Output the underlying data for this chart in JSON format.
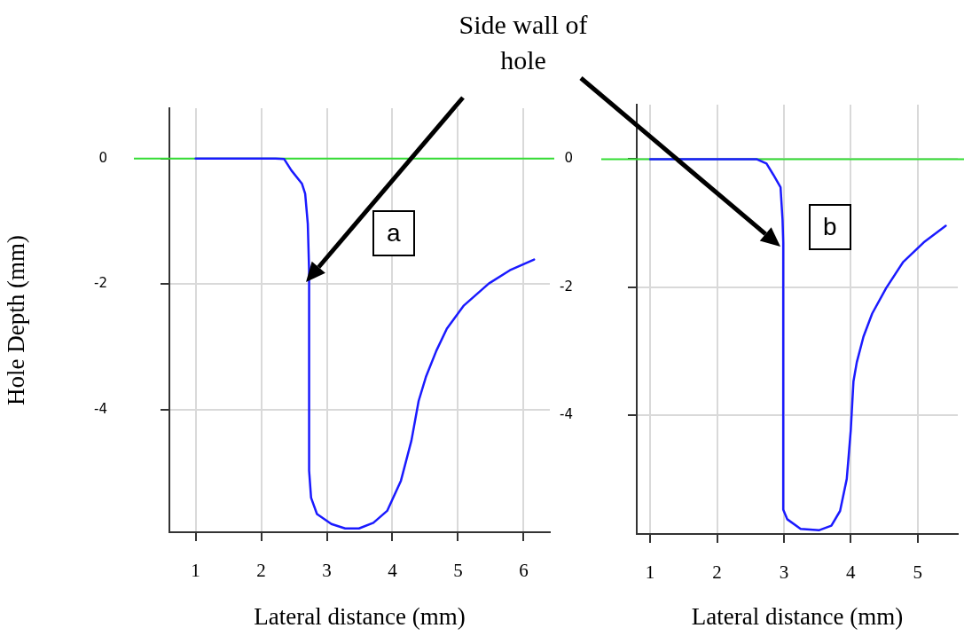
{
  "chart_data": [
    {
      "type": "line",
      "ylabel": "Hole Depth (mm)",
      "xlabel": "Lateral distance (mm)",
      "annotations": [
        "Side wall of hole",
        "a"
      ],
      "xlim": [
        0.6,
        6.4
      ],
      "xticks": [
        1,
        2,
        3,
        4,
        5,
        6
      ],
      "ylim": [
        -5.95,
        0.8
      ],
      "yticks": [
        0,
        -2,
        -4
      ],
      "grid": true,
      "legend": false,
      "marker": "none",
      "line_style": "solid",
      "ref_lines": [
        {
          "axis": "y",
          "value": 0,
          "color": "#33dd33"
        }
      ],
      "series": [
        {
          "color": "#1a1aff",
          "x": [
            1,
            2.22,
            2.35,
            2.46,
            2.62,
            2.67,
            2.71,
            2.73,
            2.73,
            2.76,
            2.85,
            3.07,
            3.28,
            3.49,
            3.71,
            3.92,
            4.13,
            4.29,
            4.4,
            4.51,
            4.67,
            4.83,
            5.09,
            5.47,
            5.79,
            6.16
          ],
          "values": [
            0,
            0,
            -0.01,
            -0.19,
            -0.4,
            -0.56,
            -1.04,
            -1.78,
            -4.97,
            -5.4,
            -5.66,
            -5.82,
            -5.89,
            -5.89,
            -5.8,
            -5.61,
            -5.13,
            -4.49,
            -3.86,
            -3.48,
            -3.06,
            -2.71,
            -2.34,
            -1.99,
            -1.78,
            -1.61
          ]
        }
      ]
    },
    {
      "type": "line",
      "xlabel": "Lateral distance (mm)",
      "annotations": [
        "b"
      ],
      "xlim": [
        0.8,
        5.6
      ],
      "xticks": [
        1,
        2,
        3,
        4,
        5
      ],
      "ylim": [
        -5.85,
        0.85
      ],
      "yticks": [
        0,
        -2,
        -4
      ],
      "grid": true,
      "legend": false,
      "marker": "none",
      "line_style": "solid",
      "ref_lines": [
        {
          "axis": "y",
          "value": 0,
          "color": "#33dd33"
        }
      ],
      "series": [
        {
          "color": "#1a1aff",
          "x": [
            1,
            2.59,
            2.74,
            2.84,
            2.95,
            2.98,
            2.99,
            2.99,
            3.05,
            3.25,
            3.53,
            3.71,
            3.84,
            3.94,
            4.0,
            4.04,
            4.09,
            4.19,
            4.32,
            4.53,
            4.78,
            5.09,
            5.42
          ],
          "values": [
            0,
            0,
            -0.07,
            -0.24,
            -0.44,
            -0.95,
            -1.3,
            -5.47,
            -5.62,
            -5.77,
            -5.79,
            -5.72,
            -5.49,
            -4.99,
            -4.23,
            -3.47,
            -3.17,
            -2.77,
            -2.41,
            -2.01,
            -1.61,
            -1.3,
            -1.04
          ]
        }
      ]
    }
  ]
}
